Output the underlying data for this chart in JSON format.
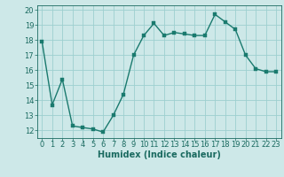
{
  "x": [
    0,
    1,
    2,
    3,
    4,
    5,
    6,
    7,
    8,
    9,
    10,
    11,
    12,
    13,
    14,
    15,
    16,
    17,
    18,
    19,
    20,
    21,
    22,
    23
  ],
  "y": [
    17.9,
    13.7,
    15.4,
    12.3,
    12.2,
    12.1,
    11.9,
    13.0,
    14.4,
    17.0,
    18.3,
    19.1,
    18.3,
    18.5,
    18.4,
    18.3,
    18.3,
    19.7,
    19.2,
    18.7,
    17.0,
    16.1,
    15.9,
    15.9
  ],
  "line_color": "#1a7a6e",
  "marker_color": "#1a7a6e",
  "bg_color": "#cde8e8",
  "grid_color": "#9dcfcf",
  "xlabel": "Humidex (Indice chaleur)",
  "xlabel_fontsize": 7,
  "ylim": [
    11.5,
    20.3
  ],
  "xlim": [
    -0.5,
    23.5
  ],
  "yticks": [
    12,
    13,
    14,
    15,
    16,
    17,
    18,
    19,
    20
  ],
  "xticks": [
    0,
    1,
    2,
    3,
    4,
    5,
    6,
    7,
    8,
    9,
    10,
    11,
    12,
    13,
    14,
    15,
    16,
    17,
    18,
    19,
    20,
    21,
    22,
    23
  ],
  "tick_fontsize": 6,
  "tick_color": "#1a6a60",
  "axis_color": "#1a6a60",
  "marker_size": 2.5,
  "line_width": 1.0
}
